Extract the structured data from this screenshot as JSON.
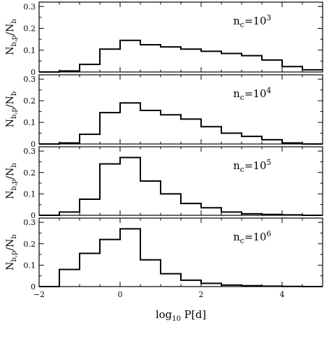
{
  "chart_data": [
    {
      "type": "histogram",
      "annotation": {
        "base": "n",
        "subscript": "c",
        "equals": "=10",
        "exponent": "3"
      },
      "ylabel": {
        "main": "N",
        "sub1": "b,p",
        "slash": "/N",
        "sub2": "b"
      },
      "ylim": [
        0,
        0.32
      ],
      "yticks": [
        0,
        0.1,
        0.2,
        0.3
      ],
      "ytick_labels": [
        "0",
        "0.1",
        "0.2",
        "0.3"
      ],
      "xlim": [
        -2,
        5
      ],
      "bin_edges": [
        -2,
        -1.5,
        -1,
        -0.5,
        0,
        0.5,
        1,
        1.5,
        2,
        2.5,
        3,
        3.5,
        4,
        4.5,
        5
      ],
      "values": [
        0.0,
        0.005,
        0.035,
        0.105,
        0.145,
        0.125,
        0.115,
        0.105,
        0.095,
        0.085,
        0.075,
        0.055,
        0.025,
        0.01
      ]
    },
    {
      "type": "histogram",
      "annotation": {
        "base": "n",
        "subscript": "c",
        "equals": "=10",
        "exponent": "4"
      },
      "ylabel": {
        "main": "N",
        "sub1": "b,p",
        "slash": "/N",
        "sub2": "b"
      },
      "ylim": [
        0,
        0.32
      ],
      "yticks": [
        0,
        0.1,
        0.2,
        0.3
      ],
      "ytick_labels": [
        "0",
        "0.1",
        "0.2",
        "0.3"
      ],
      "xlim": [
        -2,
        5
      ],
      "bin_edges": [
        -2,
        -1.5,
        -1,
        -0.5,
        0,
        0.5,
        1,
        1.5,
        2,
        2.5,
        3,
        3.5,
        4,
        4.5,
        5
      ],
      "values": [
        0.0,
        0.005,
        0.045,
        0.145,
        0.19,
        0.155,
        0.135,
        0.115,
        0.08,
        0.05,
        0.035,
        0.02,
        0.005,
        0.0
      ]
    },
    {
      "type": "histogram",
      "annotation": {
        "base": "n",
        "subscript": "c",
        "equals": "=10",
        "exponent": "5"
      },
      "ylabel": {
        "main": "N",
        "sub1": "b,p",
        "slash": "/N",
        "sub2": "b"
      },
      "ylim": [
        0,
        0.32
      ],
      "yticks": [
        0,
        0.1,
        0.2,
        0.3
      ],
      "ytick_labels": [
        "0",
        "0.1",
        "0.2",
        "0.3"
      ],
      "xlim": [
        -2,
        5
      ],
      "bin_edges": [
        -2,
        -1.5,
        -1,
        -0.5,
        0,
        0.5,
        1,
        1.5,
        2,
        2.5,
        3,
        3.5,
        4,
        4.5,
        5
      ],
      "values": [
        0.0,
        0.015,
        0.075,
        0.24,
        0.27,
        0.16,
        0.1,
        0.055,
        0.035,
        0.015,
        0.007,
        0.004,
        0.002,
        0.0
      ]
    },
    {
      "type": "histogram",
      "annotation": {
        "base": "n",
        "subscript": "c",
        "equals": "=10",
        "exponent": "6"
      },
      "ylabel": {
        "main": "N",
        "sub1": "b,p",
        "slash": "/N",
        "sub2": "b"
      },
      "ylim": [
        0,
        0.32
      ],
      "yticks": [
        0,
        0.1,
        0.2,
        0.3
      ],
      "ytick_labels": [
        "0",
        "0.1",
        "0.2",
        "0.3"
      ],
      "xlim": [
        -2,
        5
      ],
      "bin_edges": [
        -2,
        -1.5,
        -1,
        -0.5,
        0,
        0.5,
        1,
        1.5,
        2,
        2.5,
        3,
        3.5,
        4,
        4.5,
        5
      ],
      "values": [
        0.0,
        0.08,
        0.155,
        0.22,
        0.27,
        0.125,
        0.06,
        0.03,
        0.015,
        0.007,
        0.004,
        0.002,
        0.001,
        0.0
      ],
      "xticks": [
        -2,
        0,
        2,
        4
      ],
      "xtick_labels": [
        "−2",
        "0",
        "2",
        "4"
      ],
      "xlabel": {
        "base": "log",
        "sub": "10",
        "rest": " P[d]"
      }
    }
  ]
}
